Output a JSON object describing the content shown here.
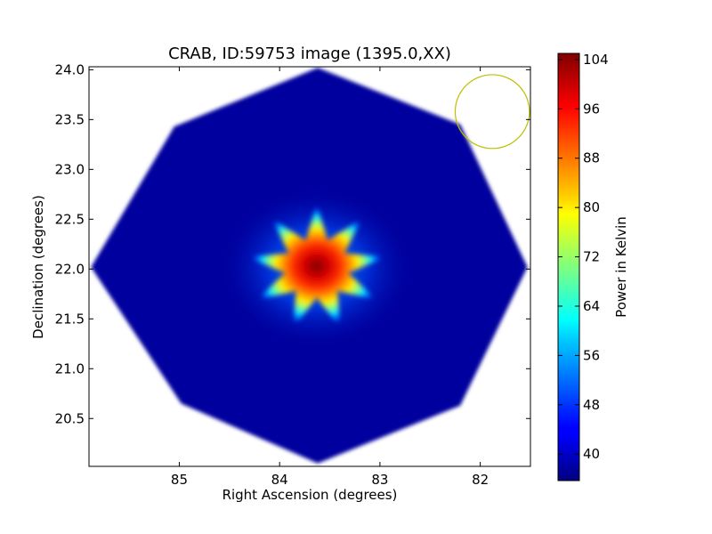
{
  "chart_data": {
    "type": "heatmap",
    "title": "CRAB, ID:59753 image (1395.0,XX)",
    "xlabel": "Right Ascension (degrees)",
    "ylabel": "Declination (degrees)",
    "colorbar_label": "Power in Kelvin",
    "xlim": [
      85.9,
      81.5
    ],
    "ylim": [
      20.02,
      24.03
    ],
    "x_ticks": [
      85,
      84,
      83,
      82
    ],
    "x_tick_labels": [
      "85",
      "84",
      "83",
      "82"
    ],
    "y_ticks": [
      20.5,
      21.0,
      21.5,
      22.0,
      22.5,
      23.0,
      23.5,
      24.0
    ],
    "y_tick_labels": [
      "20.5",
      "21.0",
      "21.5",
      "22.0",
      "22.5",
      "23.0",
      "23.5",
      "24.0"
    ],
    "colorbar_range": [
      35.7,
      105.0
    ],
    "colorbar_ticks": [
      40,
      48,
      56,
      64,
      72,
      80,
      88,
      96,
      104
    ],
    "colorbar_tick_labels": [
      "40",
      "48",
      "56",
      "64",
      "72",
      "80",
      "88",
      "96",
      "104"
    ],
    "colormap": "jet",
    "footprint": {
      "shape": "octagon",
      "vertices": [
        {
          "ra": 83.62,
          "dec": 24.02
        },
        {
          "ra": 82.2,
          "dec": 23.45
        },
        {
          "ra": 81.53,
          "dec": 22.02
        },
        {
          "ra": 82.2,
          "dec": 20.63
        },
        {
          "ra": 83.62,
          "dec": 20.05
        },
        {
          "ra": 84.98,
          "dec": 20.65
        },
        {
          "ra": 85.88,
          "dec": 22.02
        },
        {
          "ra": 85.05,
          "dec": 23.43
        }
      ],
      "background_level": 37
    },
    "source": {
      "ra": 83.63,
      "dec": 22.01,
      "peak": 104
    },
    "beam_circle": {
      "ra": 81.88,
      "dec": 23.58,
      "radius_deg": 0.37,
      "color": "#bfbf00"
    }
  }
}
